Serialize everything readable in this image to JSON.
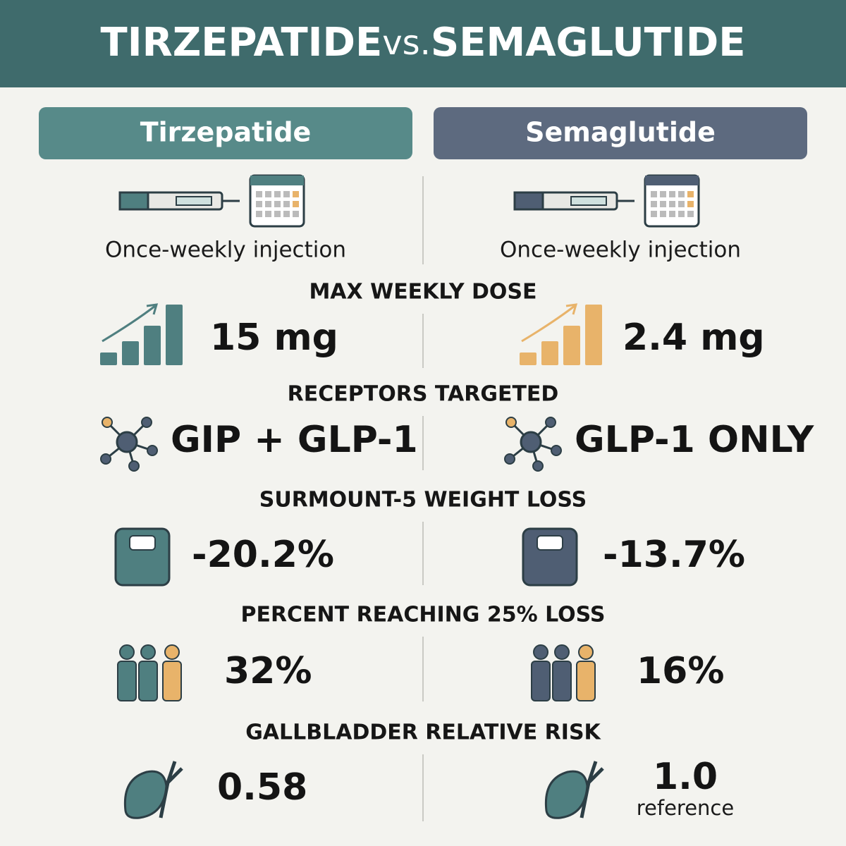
{
  "title": {
    "left": "TIRZEPATIDE",
    "middle": "vs.",
    "right": "SEMAGLUTIDE"
  },
  "columns": [
    "Tirzepatide",
    "Semaglutide"
  ],
  "dosing": [
    "Once-weekly injection",
    "Once-weekly injection"
  ],
  "sections": [
    {
      "heading": "MAX WEEKLY DOSE",
      "values": [
        "15 mg",
        "2.4 mg"
      ]
    },
    {
      "heading": "RECEPTORS TARGETED",
      "values": [
        "GIP + GLP-1",
        "GLP-1 ONLY"
      ]
    },
    {
      "heading": "SURMOUNT-5 WEIGHT LOSS",
      "values": [
        "-20.2%",
        "-13.7%"
      ]
    },
    {
      "heading": "PERCENT REACHING 25% LOSS",
      "values": [
        "32%",
        "16%"
      ]
    },
    {
      "heading": "GALLBLADDER RELATIVE RISK",
      "values": [
        "0.58",
        "1.0"
      ],
      "note": "reference"
    }
  ]
}
